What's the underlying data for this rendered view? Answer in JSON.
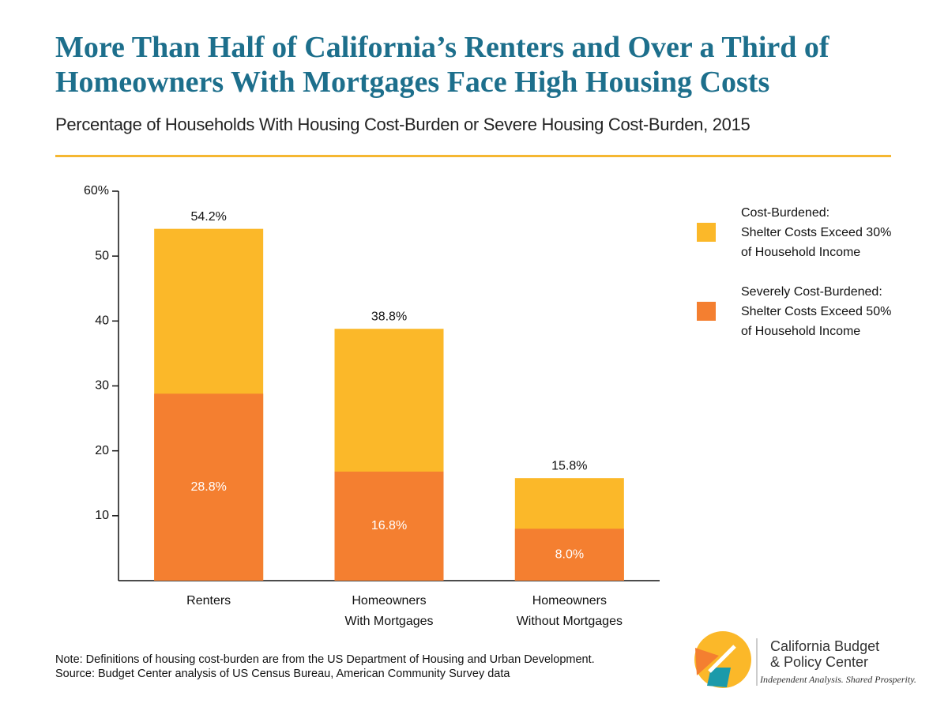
{
  "chart_data": {
    "type": "bar",
    "title": "More Than Half of California’s Renters and Over a Third of Homeowners With Mortgages Face High Housing Costs",
    "subtitle": "Percentage of Households With Housing Cost-Burden or Severe Housing Cost-Burden, 2015",
    "categories": [
      "Renters",
      "Homeowners\nWith Mortgages",
      "Homeowners\nWithout Mortgages"
    ],
    "series": [
      {
        "name": "Cost-Burdened:\nShelter Costs Exceed 30%\nof Household Income",
        "color": "#fbb829",
        "values": [
          54.2,
          38.8,
          15.8
        ],
        "value_labels": [
          "54.2%",
          "38.8%",
          "15.8%"
        ]
      },
      {
        "name": "Severely Cost-Burdened:\nShelter Costs Exceed 50%\nof Household Income",
        "color": "#f47f30",
        "values": [
          28.8,
          16.8,
          8.0
        ],
        "value_labels": [
          "28.8%",
          "16.8%",
          "8.0%"
        ]
      }
    ],
    "ylim": [
      0,
      60
    ],
    "yticks": [
      10,
      20,
      30,
      40,
      50,
      {
        "value": 60,
        "label": "60%"
      }
    ],
    "grid": false,
    "legend": "right",
    "note": "Note: Definitions of housing cost-burden are from the US Department of Housing and Urban Development.",
    "source": "Source: Budget Center analysis of US Census Bureau, American Community Survey data",
    "logo_name": "California Budget\n& Policy Center",
    "logo_tagline": "Independent Analysis. Shared Prosperity."
  }
}
